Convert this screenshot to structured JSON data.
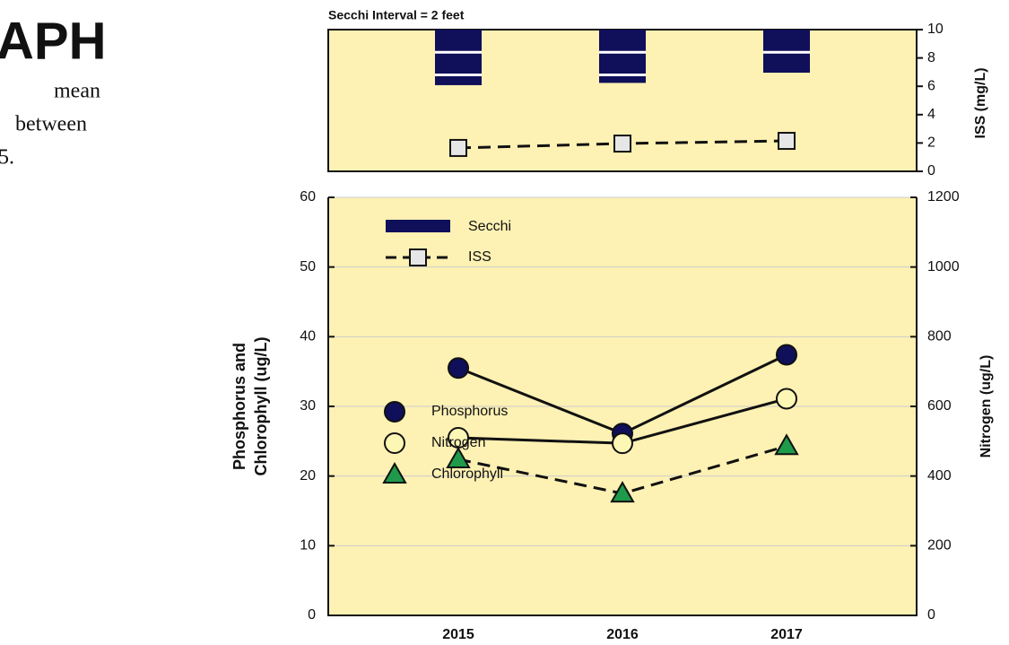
{
  "page_text": {
    "heading": "APH",
    "lines": [
      "mean",
      "between",
      "5."
    ]
  },
  "chart_data": [
    {
      "type": "bar",
      "title": "Secchi Interval = 2 feet",
      "categories": [
        "2015",
        "2016",
        "2017"
      ],
      "ylim": [
        0,
        12.5
      ],
      "inverted": true,
      "y2lim": [
        0,
        10
      ],
      "y2ticks": [
        0,
        2,
        4,
        6,
        8,
        10
      ],
      "y2label": "ISS (mg/L)",
      "series": [
        {
          "name": "Secchi",
          "color": "#0f0f5a",
          "values": [
            4.9,
            4.7,
            3.8
          ],
          "interval": 2
        },
        {
          "name": "ISS",
          "type": "line",
          "axis": "y2",
          "color": "#e6e6e6",
          "marker": "square",
          "dash": true,
          "values": [
            1.65,
            1.96,
            2.15
          ]
        }
      ]
    },
    {
      "type": "line",
      "categories": [
        "2015",
        "2016",
        "2017"
      ],
      "ylim": [
        0,
        60
      ],
      "yticks": [
        0,
        10,
        20,
        30,
        40,
        50,
        60
      ],
      "ylabel": [
        "Phosphorus and",
        "Chlorophyll (ug/L)"
      ],
      "y2lim": [
        0,
        1200
      ],
      "y2ticks": [
        0,
        200,
        400,
        600,
        800,
        1000,
        1200
      ],
      "y2label": "Nitrogen (ug/L)",
      "grid": true,
      "series": [
        {
          "name": "Phosphorus",
          "color": "#0f0f5a",
          "marker": "circle",
          "dash": false,
          "values": [
            35.5,
            26.1,
            37.4
          ]
        },
        {
          "name": "Nitrogen",
          "axis": "y2",
          "color": "#fdf7b5",
          "marker": "circle",
          "dash": false,
          "values": [
            510,
            494,
            622
          ]
        },
        {
          "name": "Chlorophyll",
          "color": "#1f9a4a",
          "marker": "triangle",
          "dash": true,
          "values": [
            22.4,
            17.5,
            24.3
          ]
        }
      ]
    }
  ]
}
